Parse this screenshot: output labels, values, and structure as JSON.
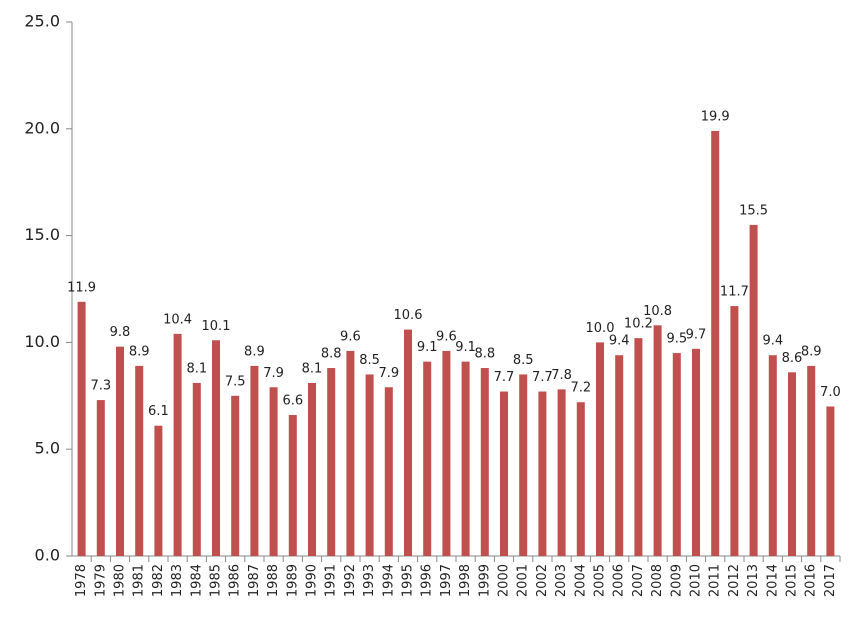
{
  "chart_data": {
    "type": "bar",
    "categories": [
      "1978",
      "1979",
      "1980",
      "1981",
      "1982",
      "1983",
      "1984",
      "1985",
      "1986",
      "1987",
      "1988",
      "1989",
      "1990",
      "1991",
      "1992",
      "1993",
      "1994",
      "1995",
      "1996",
      "1997",
      "1998",
      "1999",
      "2000",
      "2001",
      "2002",
      "2003",
      "2004",
      "2005",
      "2006",
      "2007",
      "2008",
      "2009",
      "2010",
      "2011",
      "2012",
      "2013",
      "2014",
      "2015",
      "2016",
      "2017"
    ],
    "values": [
      11.9,
      7.3,
      9.8,
      8.9,
      6.1,
      10.4,
      8.1,
      10.1,
      7.5,
      8.9,
      7.9,
      6.6,
      8.1,
      8.8,
      9.6,
      8.5,
      7.9,
      10.6,
      9.1,
      9.6,
      9.1,
      8.8,
      7.7,
      8.5,
      7.7,
      7.8,
      7.2,
      10.0,
      9.4,
      10.2,
      10.8,
      9.5,
      9.7,
      19.9,
      11.7,
      15.5,
      9.4,
      8.6,
      8.9,
      7.0
    ],
    "value_labels": [
      "11.9",
      "7.3",
      "9.8",
      "8.9",
      "6.1",
      "10.4",
      "8.1",
      "10.1",
      "7.5",
      "8.9",
      "7.9",
      "6.6",
      "8.1",
      "8.8",
      "9.6",
      "8.5",
      "7.9",
      "10.6",
      "9.1",
      "9.6",
      "9.1",
      "8.8",
      "7.7",
      "8.5",
      "7.7",
      "7.8",
      "7.2",
      "10.0",
      "9.4",
      "10.2",
      "10.8",
      "9.5",
      "9.7",
      "19.9",
      "11.7",
      "15.5",
      "9.4",
      "8.6",
      "8.9",
      "7.0"
    ],
    "color": "#c0504d",
    "ylim": [
      0,
      25
    ],
    "yticks": [
      {
        "value": 0,
        "label": "0.0"
      },
      {
        "value": 5,
        "label": "5.0"
      },
      {
        "value": 10,
        "label": "10.0"
      },
      {
        "value": 15,
        "label": "15.0"
      },
      {
        "value": 20,
        "label": "20.0"
      },
      {
        "value": 25,
        "label": "25.0"
      }
    ],
    "grid": false
  }
}
